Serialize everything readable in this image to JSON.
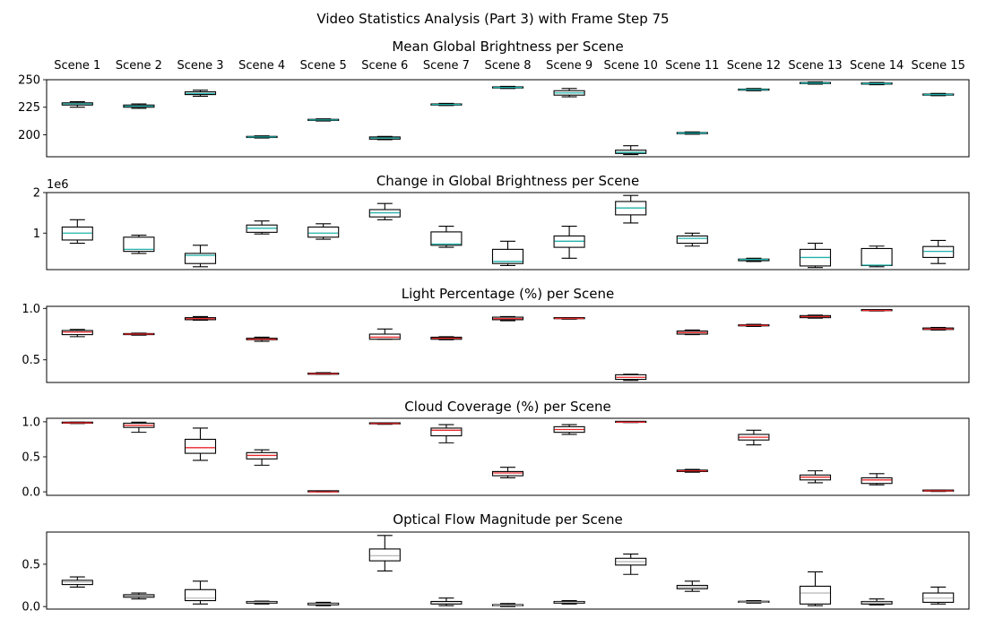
{
  "figure": {
    "suptitle": "Video Statistics Analysis (Part 3) with Frame Step 75",
    "scene_labels": [
      "Scene 1",
      "Scene 2",
      "Scene 3",
      "Scene 4",
      "Scene 5",
      "Scene 6",
      "Scene 7",
      "Scene 8",
      "Scene 9",
      "Scene 10",
      "Scene 11",
      "Scene 12",
      "Scene 13",
      "Scene 14",
      "Scene 15"
    ]
  },
  "chart_data": [
    {
      "type": "box",
      "title": "Mean Global Brightness per Scene",
      "ylim": [
        180,
        250
      ],
      "yticks": [
        200,
        225,
        250
      ],
      "ytick_labels": [
        "200",
        "225",
        "250"
      ],
      "median_color": "#20b2aa",
      "boxes": [
        {
          "whislo": 225,
          "q1": 227,
          "med": 228,
          "q3": 229,
          "whishi": 230
        },
        {
          "whislo": 224,
          "q1": 225,
          "med": 226,
          "q3": 227,
          "whishi": 228
        },
        {
          "whislo": 235,
          "q1": 236.5,
          "med": 237.5,
          "q3": 239,
          "whishi": 240.5
        },
        {
          "whislo": 197,
          "q1": 197.5,
          "med": 198,
          "q3": 198.5,
          "whishi": 199
        },
        {
          "whislo": 212.5,
          "q1": 213,
          "med": 213.5,
          "q3": 214,
          "whishi": 214.5
        },
        {
          "whislo": 195.5,
          "q1": 196,
          "med": 197,
          "q3": 198,
          "whishi": 198.5
        },
        {
          "whislo": 226.5,
          "q1": 227,
          "med": 227.5,
          "q3": 228,
          "whishi": 228.5
        },
        {
          "whislo": 242,
          "q1": 242.5,
          "med": 243,
          "q3": 243.5,
          "whishi": 244
        },
        {
          "whislo": 234.5,
          "q1": 236,
          "med": 238,
          "q3": 240,
          "whishi": 242
        },
        {
          "whislo": 182,
          "q1": 183,
          "med": 184,
          "q3": 186,
          "whishi": 190
        },
        {
          "whislo": 200.5,
          "q1": 201,
          "med": 201.5,
          "q3": 202,
          "whishi": 202.5
        },
        {
          "whislo": 240,
          "q1": 240.5,
          "med": 241,
          "q3": 241.5,
          "whishi": 242
        },
        {
          "whislo": 246,
          "q1": 246.5,
          "med": 247,
          "q3": 247.5,
          "whishi": 248
        },
        {
          "whislo": 245.5,
          "q1": 246,
          "med": 246.5,
          "q3": 247,
          "whishi": 247.5
        },
        {
          "whislo": 235.5,
          "q1": 236,
          "med": 236.5,
          "q3": 237,
          "whishi": 237.5
        }
      ]
    },
    {
      "type": "box",
      "title": "Change in Global Brightness per Scene",
      "ylim": [
        100000,
        2000000
      ],
      "yticks": [
        1000000,
        2000000
      ],
      "ytick_labels": [
        "1",
        "2"
      ],
      "offset_label": "1e6",
      "median_color": "#20b2aa",
      "boxes": [
        {
          "whislo": 750000,
          "q1": 830000,
          "med": 1000000,
          "q3": 1150000,
          "whishi": 1330000
        },
        {
          "whislo": 500000,
          "q1": 550000,
          "med": 600000,
          "q3": 900000,
          "whishi": 950000
        },
        {
          "whislo": 170000,
          "q1": 250000,
          "med": 450000,
          "q3": 500000,
          "whishi": 700000
        },
        {
          "whislo": 980000,
          "q1": 1020000,
          "med": 1120000,
          "q3": 1200000,
          "whishi": 1300000
        },
        {
          "whislo": 850000,
          "q1": 900000,
          "med": 1000000,
          "q3": 1150000,
          "whishi": 1230000
        },
        {
          "whislo": 1330000,
          "q1": 1400000,
          "med": 1500000,
          "q3": 1580000,
          "whishi": 1730000
        },
        {
          "whislo": 650000,
          "q1": 700000,
          "med": 730000,
          "q3": 1030000,
          "whishi": 1170000
        },
        {
          "whislo": 200000,
          "q1": 250000,
          "med": 300000,
          "q3": 600000,
          "whishi": 800000
        },
        {
          "whislo": 380000,
          "q1": 650000,
          "med": 800000,
          "q3": 930000,
          "whishi": 1170000
        },
        {
          "whislo": 1250000,
          "q1": 1450000,
          "med": 1620000,
          "q3": 1780000,
          "whishi": 1930000
        },
        {
          "whislo": 680000,
          "q1": 750000,
          "med": 870000,
          "q3": 930000,
          "whishi": 1000000
        },
        {
          "whislo": 300000,
          "q1": 320000,
          "med": 350000,
          "q3": 360000,
          "whishi": 380000
        },
        {
          "whislo": 150000,
          "q1": 190000,
          "med": 400000,
          "q3": 600000,
          "whishi": 750000
        },
        {
          "whislo": 170000,
          "q1": 200000,
          "med": 210000,
          "q3": 620000,
          "whishi": 680000
        },
        {
          "whislo": 250000,
          "q1": 400000,
          "med": 550000,
          "q3": 670000,
          "whishi": 820000
        }
      ]
    },
    {
      "type": "box",
      "title": "Light Percentage (%) per Scene",
      "ylim": [
        0.28,
        1.02
      ],
      "yticks": [
        0.5,
        1.0
      ],
      "ytick_labels": [
        "0.5",
        "1.0"
      ],
      "median_color": "#e8262b",
      "boxes": [
        {
          "whislo": 0.725,
          "q1": 0.745,
          "med": 0.77,
          "q3": 0.785,
          "whishi": 0.795
        },
        {
          "whislo": 0.74,
          "q1": 0.745,
          "med": 0.75,
          "q3": 0.755,
          "whishi": 0.76
        },
        {
          "whislo": 0.885,
          "q1": 0.89,
          "med": 0.9,
          "q3": 0.91,
          "whishi": 0.92
        },
        {
          "whislo": 0.68,
          "q1": 0.695,
          "med": 0.7,
          "q3": 0.71,
          "whishi": 0.72
        },
        {
          "whislo": 0.36,
          "q1": 0.36,
          "med": 0.365,
          "q3": 0.37,
          "whishi": 0.375
        },
        {
          "whislo": 0.7,
          "q1": 0.7,
          "med": 0.72,
          "q3": 0.75,
          "whishi": 0.8
        },
        {
          "whislo": 0.695,
          "q1": 0.7,
          "med": 0.71,
          "q3": 0.72,
          "whishi": 0.725
        },
        {
          "whislo": 0.88,
          "q1": 0.89,
          "med": 0.9,
          "q3": 0.915,
          "whishi": 0.92
        },
        {
          "whislo": 0.895,
          "q1": 0.9,
          "med": 0.903,
          "q3": 0.906,
          "whishi": 0.91
        },
        {
          "whislo": 0.3,
          "q1": 0.31,
          "med": 0.33,
          "q3": 0.355,
          "whishi": 0.36
        },
        {
          "whislo": 0.745,
          "q1": 0.75,
          "med": 0.765,
          "q3": 0.78,
          "whishi": 0.79
        },
        {
          "whislo": 0.825,
          "q1": 0.83,
          "med": 0.835,
          "q3": 0.84,
          "whishi": 0.845
        },
        {
          "whislo": 0.905,
          "q1": 0.91,
          "med": 0.92,
          "q3": 0.93,
          "whishi": 0.935
        },
        {
          "whislo": 0.975,
          "q1": 0.978,
          "med": 0.98,
          "q3": 0.983,
          "whishi": 0.985
        },
        {
          "whislo": 0.79,
          "q1": 0.795,
          "med": 0.8,
          "q3": 0.81,
          "whishi": 0.815
        }
      ]
    },
    {
      "type": "box",
      "title": "Cloud Coverage (%) per Scene",
      "ylim": [
        -0.05,
        1.05
      ],
      "yticks": [
        0.0,
        0.5,
        1.0
      ],
      "ytick_labels": [
        "0.0",
        "0.5",
        "1.0"
      ],
      "median_color": "#e8262b",
      "boxes": [
        {
          "whislo": 0.975,
          "q1": 0.98,
          "med": 0.985,
          "q3": 0.99,
          "whishi": 0.995
        },
        {
          "whislo": 0.85,
          "q1": 0.92,
          "med": 0.95,
          "q3": 0.98,
          "whishi": 0.995
        },
        {
          "whislo": 0.45,
          "q1": 0.55,
          "med": 0.63,
          "q3": 0.75,
          "whishi": 0.91
        },
        {
          "whislo": 0.38,
          "q1": 0.47,
          "med": 0.52,
          "q3": 0.56,
          "whishi": 0.6
        },
        {
          "whislo": 0.0,
          "q1": 0.0,
          "med": 0.0,
          "q3": 0.005,
          "whishi": 0.01
        },
        {
          "whislo": 0.965,
          "q1": 0.97,
          "med": 0.975,
          "q3": 0.98,
          "whishi": 0.985
        },
        {
          "whislo": 0.7,
          "q1": 0.8,
          "med": 0.88,
          "q3": 0.91,
          "whishi": 0.96
        },
        {
          "whislo": 0.2,
          "q1": 0.23,
          "med": 0.27,
          "q3": 0.29,
          "whishi": 0.35
        },
        {
          "whislo": 0.82,
          "q1": 0.85,
          "med": 0.89,
          "q3": 0.93,
          "whishi": 0.96
        },
        {
          "whislo": 0.99,
          "q1": 0.992,
          "med": 0.995,
          "q3": 0.997,
          "whishi": 1.0
        },
        {
          "whislo": 0.28,
          "q1": 0.29,
          "med": 0.3,
          "q3": 0.31,
          "whishi": 0.32
        },
        {
          "whislo": 0.67,
          "q1": 0.74,
          "med": 0.78,
          "q3": 0.82,
          "whishi": 0.88
        },
        {
          "whislo": 0.13,
          "q1": 0.17,
          "med": 0.21,
          "q3": 0.24,
          "whishi": 0.3
        },
        {
          "whislo": 0.1,
          "q1": 0.12,
          "med": 0.17,
          "q3": 0.2,
          "whishi": 0.26
        },
        {
          "whislo": 0.005,
          "q1": 0.01,
          "med": 0.015,
          "q3": 0.02,
          "whishi": 0.025
        }
      ]
    },
    {
      "type": "box",
      "title": "Optical Flow Magnitude per Scene",
      "ylim": [
        -0.03,
        0.88
      ],
      "yticks": [
        0.0,
        0.5
      ],
      "ytick_labels": [
        "0.0",
        "0.5"
      ],
      "median_color": "#bbbbbb",
      "boxes": [
        {
          "whislo": 0.23,
          "q1": 0.26,
          "med": 0.29,
          "q3": 0.31,
          "whishi": 0.35
        },
        {
          "whislo": 0.09,
          "q1": 0.11,
          "med": 0.125,
          "q3": 0.14,
          "whishi": 0.16
        },
        {
          "whislo": 0.03,
          "q1": 0.07,
          "med": 0.1,
          "q3": 0.2,
          "whishi": 0.3
        },
        {
          "whislo": 0.03,
          "q1": 0.04,
          "med": 0.05,
          "q3": 0.06,
          "whishi": 0.065
        },
        {
          "whislo": 0.01,
          "q1": 0.02,
          "med": 0.03,
          "q3": 0.04,
          "whishi": 0.05
        },
        {
          "whislo": 0.42,
          "q1": 0.54,
          "med": 0.6,
          "q3": 0.68,
          "whishi": 0.84
        },
        {
          "whislo": 0.01,
          "q1": 0.03,
          "med": 0.04,
          "q3": 0.06,
          "whishi": 0.1
        },
        {
          "whislo": 0.0,
          "q1": 0.01,
          "med": 0.015,
          "q3": 0.02,
          "whishi": 0.035
        },
        {
          "whislo": 0.03,
          "q1": 0.04,
          "med": 0.05,
          "q3": 0.06,
          "whishi": 0.07
        },
        {
          "whislo": 0.38,
          "q1": 0.49,
          "med": 0.53,
          "q3": 0.57,
          "whishi": 0.62
        },
        {
          "whislo": 0.18,
          "q1": 0.21,
          "med": 0.23,
          "q3": 0.25,
          "whishi": 0.3
        },
        {
          "whislo": 0.04,
          "q1": 0.05,
          "med": 0.055,
          "q3": 0.06,
          "whishi": 0.07
        },
        {
          "whislo": 0.01,
          "q1": 0.03,
          "med": 0.16,
          "q3": 0.24,
          "whishi": 0.41
        },
        {
          "whislo": 0.02,
          "q1": 0.03,
          "med": 0.05,
          "q3": 0.06,
          "whishi": 0.09
        },
        {
          "whislo": 0.03,
          "q1": 0.05,
          "med": 0.1,
          "q3": 0.16,
          "whishi": 0.23
        }
      ]
    }
  ]
}
